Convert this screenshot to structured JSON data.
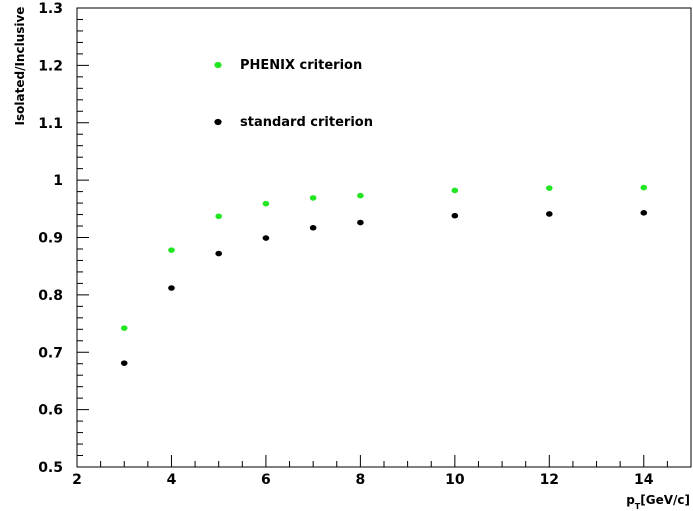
{
  "chart_data": {
    "type": "scatter",
    "title": "",
    "xlabel": "p_T [GeV/c]",
    "ylabel": "Isolated/Inclusive",
    "xlim": [
      2,
      15
    ],
    "ylim": [
      0.5,
      1.3
    ],
    "x_ticks": [
      2,
      4,
      6,
      8,
      10,
      12,
      14
    ],
    "y_ticks": [
      0.5,
      0.6,
      0.7,
      0.8,
      0.9,
      1,
      1.1,
      1.2,
      1.3
    ],
    "x_tick_labels": [
      "2",
      "4",
      "6",
      "8",
      "10",
      "12",
      "14"
    ],
    "y_tick_labels": [
      "0.5",
      "0.6",
      "0.7",
      "0.8",
      "0.9",
      "1",
      "1.1",
      "1.2",
      "1.3"
    ],
    "grid": false,
    "legend_placement": "top-left",
    "series": [
      {
        "name": "PHENIX criterion",
        "color": "#22e622",
        "x": [
          3,
          4,
          5,
          6,
          7,
          8,
          10,
          12,
          14
        ],
        "y": [
          0.742,
          0.878,
          0.937,
          0.959,
          0.969,
          0.973,
          0.982,
          0.986,
          0.987
        ]
      },
      {
        "name": "standard criterion",
        "color": "#000000",
        "x": [
          3,
          4,
          5,
          6,
          7,
          8,
          10,
          12,
          14
        ],
        "y": [
          0.681,
          0.812,
          0.872,
          0.899,
          0.917,
          0.926,
          0.938,
          0.941,
          0.943
        ]
      }
    ]
  }
}
